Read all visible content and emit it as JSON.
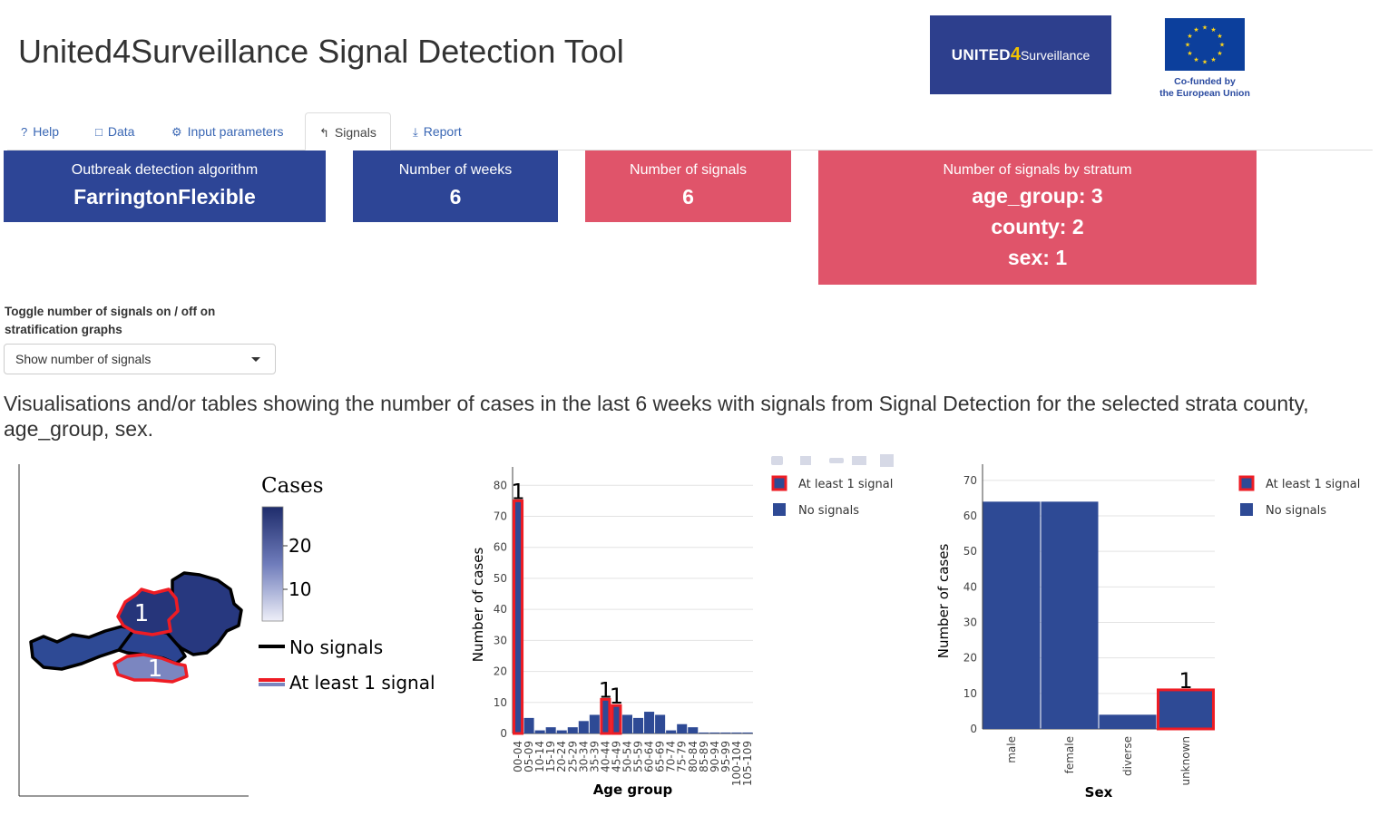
{
  "header": {
    "title": "United4Surveillance Signal Detection Tool",
    "logo_united": "UNITED",
    "logo_four": "4",
    "logo_surveillance": "Surveillance",
    "eu_line1": "Co-funded by",
    "eu_line2": "the European Union"
  },
  "tabs": [
    {
      "label": "Help",
      "icon": "question-icon"
    },
    {
      "label": "Data",
      "icon": "file-icon"
    },
    {
      "label": "Input parameters",
      "icon": "gears-icon"
    },
    {
      "label": "Signals",
      "icon": "wave-icon",
      "active": true
    },
    {
      "label": "Report",
      "icon": "download-icon"
    }
  ],
  "value_boxes": {
    "algorithm": {
      "label": "Outbreak detection algorithm",
      "value": "FarringtonFlexible"
    },
    "weeks": {
      "label": "Number of weeks",
      "value": "6"
    },
    "signals": {
      "label": "Number of signals",
      "value": "6"
    },
    "by_stratum": {
      "label": "Number of signals by stratum",
      "lines": [
        "age_group: 3",
        "county: 2",
        "sex: 1"
      ]
    }
  },
  "colors": {
    "blue_box": "#2d4596",
    "red_box": "#e0546a",
    "bar": "#2e4a95",
    "signal": "#ee1c24"
  },
  "toggle": {
    "label": "Toggle number of signals on / off on stratification graphs",
    "selected": "Show number of signals"
  },
  "description": "Visualisations and/or tables showing the number of cases in the last 6 weeks with signals from Signal Detection for the selected strata county, age_group, sex.",
  "map": {
    "legend_title": "Cases",
    "ticks": [
      "20",
      "10"
    ],
    "no_signals_label": "No signals",
    "signal_label": "At least 1 signal",
    "region_labels": [
      "1",
      "1"
    ]
  },
  "chart_data": [
    {
      "type": "bar",
      "xlabel": "Age group",
      "ylabel": "Number of cases",
      "ylim": [
        0,
        83
      ],
      "yticks": [
        0,
        10,
        20,
        30,
        40,
        50,
        60,
        70,
        80
      ],
      "categories": [
        "00-04",
        "05-09",
        "10-14",
        "15-19",
        "20-24",
        "25-29",
        "30-34",
        "35-39",
        "40-44",
        "45-49",
        "50-54",
        "55-59",
        "60-64",
        "65-69",
        "70-74",
        "75-79",
        "80-84",
        "85-89",
        "90-94",
        "95-99",
        "100-104",
        "105-109"
      ],
      "values": [
        75,
        5,
        1,
        2,
        1,
        2,
        4,
        6,
        11,
        9,
        6,
        5,
        7,
        6,
        1,
        3,
        2,
        0.3,
        0.3,
        0.3,
        0.3,
        0.3
      ],
      "signals": [
        1,
        0,
        0,
        0,
        0,
        0,
        0,
        0,
        1,
        1,
        0,
        0,
        0,
        0,
        0,
        0,
        0,
        0,
        0,
        0,
        0,
        0
      ],
      "signal_labels": [
        "1",
        "",
        "",
        "",
        "",
        "",
        "",
        "",
        "1",
        "1",
        "",
        "",
        "",
        "",
        "",
        "",
        "",
        "",
        "",
        "",
        "",
        ""
      ],
      "legend": [
        "At least 1 signal",
        "No signals"
      ],
      "legend_position": "right"
    },
    {
      "type": "bar",
      "xlabel": "Sex",
      "ylabel": "Number of cases",
      "ylim": [
        0,
        72
      ],
      "yticks": [
        0,
        10,
        20,
        30,
        40,
        50,
        60,
        70
      ],
      "categories": [
        "male",
        "female",
        "diverse",
        "unknown"
      ],
      "values": [
        64,
        64,
        4,
        11
      ],
      "signals": [
        0,
        0,
        0,
        1
      ],
      "signal_labels": [
        "",
        "",
        "",
        "1"
      ],
      "legend": [
        "At least 1 signal",
        "No signals"
      ],
      "legend_position": "right"
    }
  ]
}
